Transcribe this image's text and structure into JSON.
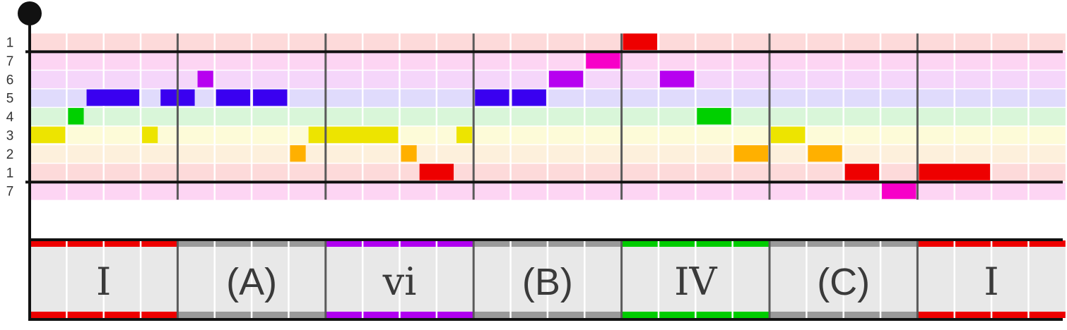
{
  "rows": [
    {
      "label": "1",
      "color": "#fddada"
    },
    {
      "label": "7",
      "color": "#fdd5f3"
    },
    {
      "label": "6",
      "color": "#f5d6fa"
    },
    {
      "label": "5",
      "color": "#e0dbfc"
    },
    {
      "label": "4",
      "color": "#d9f6d9"
    },
    {
      "label": "3",
      "color": "#fdfbd8"
    },
    {
      "label": "2",
      "color": "#fdf0dc"
    },
    {
      "label": "1",
      "color": "#fddada"
    },
    {
      "label": "7",
      "color": "#fdd5f3"
    }
  ],
  "note_colors": [
    "#ee0000",
    "#f700c8",
    "#b700f0",
    "#3a00f0",
    "#00d000",
    "#ede400",
    "#ffb000",
    "#ee0000",
    "#f700c8"
  ],
  "notes": [
    {
      "row": 4,
      "start": 1,
      "len": 0.5
    },
    {
      "row": 3,
      "start": 1.5,
      "len": 1.5
    },
    {
      "row": 5,
      "start": 0,
      "len": 1
    },
    {
      "row": 5,
      "start": 3,
      "len": 0.5
    },
    {
      "row": 3,
      "start": 3.5,
      "len": 1
    },
    {
      "row": 2,
      "start": 4.5,
      "len": 0.5
    },
    {
      "row": 3,
      "start": 5,
      "len": 1
    },
    {
      "row": 3,
      "start": 6,
      "len": 1
    },
    {
      "row": 6,
      "start": 7,
      "len": 0.5
    },
    {
      "row": 5,
      "start": 7.5,
      "len": 2.5
    },
    {
      "row": 6,
      "start": 10,
      "len": 0.5
    },
    {
      "row": 7,
      "start": 10.5,
      "len": 1
    },
    {
      "row": 5,
      "start": 11.5,
      "len": 0.5
    },
    {
      "row": 3,
      "start": 12,
      "len": 1
    },
    {
      "row": 3,
      "start": 13,
      "len": 1
    },
    {
      "row": 2,
      "start": 14,
      "len": 1
    },
    {
      "row": 1,
      "start": 15,
      "len": 1
    },
    {
      "row": 0,
      "start": 16,
      "len": 1
    },
    {
      "row": 2,
      "start": 17,
      "len": 1
    },
    {
      "row": 4,
      "start": 18,
      "len": 1
    },
    {
      "row": 6,
      "start": 19,
      "len": 1
    },
    {
      "row": 5,
      "start": 20,
      "len": 1
    },
    {
      "row": 6,
      "start": 21,
      "len": 1
    },
    {
      "row": 7,
      "start": 22,
      "len": 1
    },
    {
      "row": 8,
      "start": 23,
      "len": 1
    },
    {
      "row": 7,
      "start": 24,
      "len": 2
    }
  ],
  "chords": [
    {
      "label": "I",
      "style": "roman",
      "color": "#ee0000"
    },
    {
      "label": "(A)",
      "style": "letter",
      "color": "#9a9a9a"
    },
    {
      "label": "vi",
      "style": "roman",
      "color": "#b000f0"
    },
    {
      "label": "(B)",
      "style": "letter",
      "color": "#9a9a9a"
    },
    {
      "label": "IV",
      "style": "roman",
      "color": "#00cc00"
    },
    {
      "label": "(C)",
      "style": "letter",
      "color": "#9a9a9a"
    },
    {
      "label": "I",
      "style": "roman",
      "color": "#ee0000"
    }
  ],
  "measures": 7,
  "beats_per_measure": 4,
  "octave_boundary_rows": [
    1,
    8
  ]
}
